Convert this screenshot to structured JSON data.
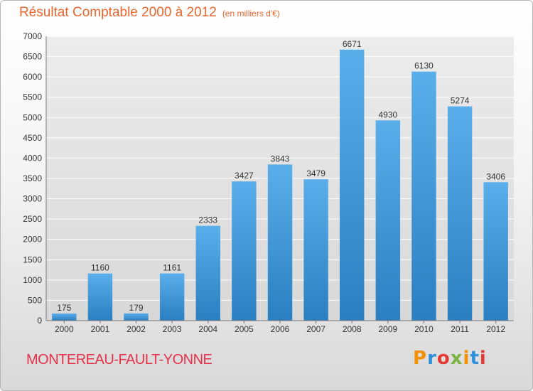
{
  "header": {
    "title": "Résultat Comptable 2000 à 2012",
    "subtitle": "(en milliers d'€)"
  },
  "footer": {
    "commune": "MONTEREAU-FAULT-YONNE",
    "logo_text": "Proxiti",
    "logo_colors": [
      "#f39200",
      "#2f8fd8",
      "#e53935",
      "#7cb342",
      "#f39200",
      "#2f8fd8",
      "#e53935"
    ]
  },
  "colors": {
    "title": "#e8662e",
    "commune": "#e5324a",
    "bar_light": "#5aaeea",
    "bar_dark": "#2a7fc1",
    "grid": "#ffffff"
  },
  "chart_data": {
    "type": "bar",
    "title": "Résultat Comptable 2000 à 2012",
    "subtitle": "(en milliers d'€)",
    "xlabel": "",
    "ylabel": "",
    "categories": [
      "2000",
      "2001",
      "2002",
      "2003",
      "2004",
      "2005",
      "2006",
      "2007",
      "2008",
      "2009",
      "2010",
      "2011",
      "2012"
    ],
    "values": [
      175,
      1160,
      179,
      1161,
      2333,
      3427,
      3843,
      3479,
      6671,
      4930,
      6130,
      5274,
      3406
    ],
    "ylim": [
      0,
      7000
    ],
    "yticks": [
      0,
      500,
      1000,
      1500,
      2000,
      2500,
      3000,
      3500,
      4000,
      4500,
      5000,
      5500,
      6000,
      6500,
      7000
    ],
    "grid": true,
    "data_labels": true
  }
}
